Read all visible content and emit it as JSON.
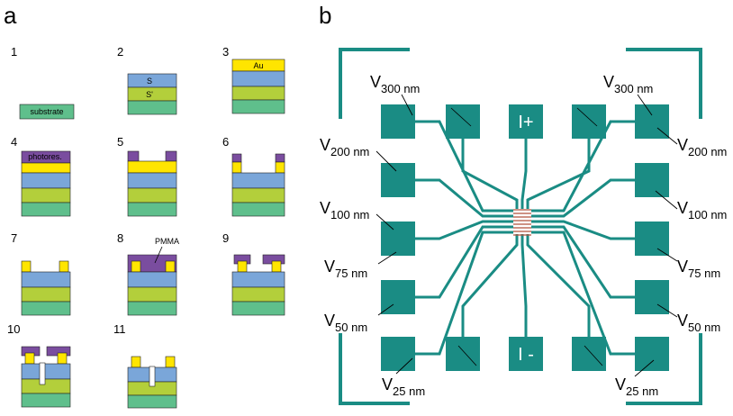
{
  "panel_a": {
    "label": "a",
    "steps": [
      "1",
      "2",
      "3",
      "4",
      "5",
      "6",
      "7",
      "8",
      "9",
      "10",
      "11"
    ],
    "layer_labels": {
      "substrate": "substrate",
      "s": "S",
      "s_prime": "S'",
      "au": "Au",
      "photoresist": "photores.",
      "pmma": "PMMA"
    }
  },
  "panel_b": {
    "label": "b",
    "current_pads": [
      "I+",
      "I -"
    ],
    "voltage_probes": [
      {
        "symbol": "V",
        "subscript": "300 nm"
      },
      {
        "symbol": "V",
        "subscript": "200 nm"
      },
      {
        "symbol": "V",
        "subscript": "100 nm"
      },
      {
        "symbol": "V",
        "subscript": "75 nm"
      },
      {
        "symbol": "V",
        "subscript": "50 nm"
      },
      {
        "symbol": "V",
        "subscript": "25 nm"
      },
      {
        "symbol": "V",
        "subscript": "300 nm"
      },
      {
        "symbol": "V",
        "subscript": "200 nm"
      },
      {
        "symbol": "V",
        "subscript": "100 nm"
      },
      {
        "symbol": "V",
        "subscript": "75 nm"
      },
      {
        "symbol": "V",
        "subscript": "50 nm"
      },
      {
        "symbol": "V",
        "subscript": "25 nm"
      }
    ]
  }
}
